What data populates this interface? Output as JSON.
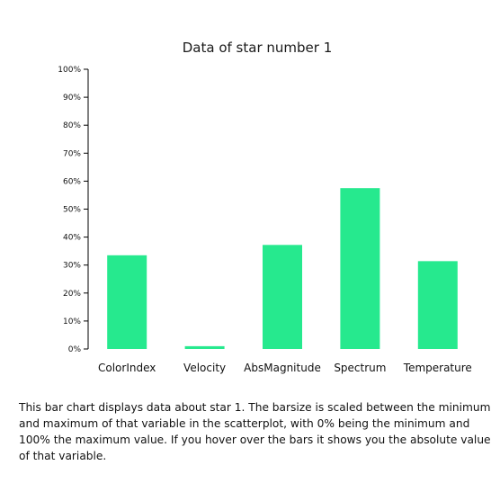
{
  "chart_data": {
    "type": "bar",
    "title": "Data of star number 1",
    "categories": [
      "ColorIndex",
      "Velocity",
      "AbsMagnitude",
      "Spectrum",
      "Temperature"
    ],
    "values": [
      33.5,
      1,
      37.2,
      57.5,
      31.4
    ],
    "value_unit": "%",
    "ylim": [
      0,
      100
    ],
    "yticks": [
      "0%",
      "10%",
      "20%",
      "30%",
      "40%",
      "50%",
      "60%",
      "70%",
      "80%",
      "90%",
      "100%"
    ],
    "xlabel": "",
    "ylabel": "",
    "grid": false,
    "bar_color": "#26e98e"
  },
  "description": "This bar chart displays data about star 1. The barsize is scaled between the minimum and maximum of that variable in the scatterplot, with 0% being the minimum and 100% the maximum value. If you hover over the bars it shows you the absolute value of that variable."
}
